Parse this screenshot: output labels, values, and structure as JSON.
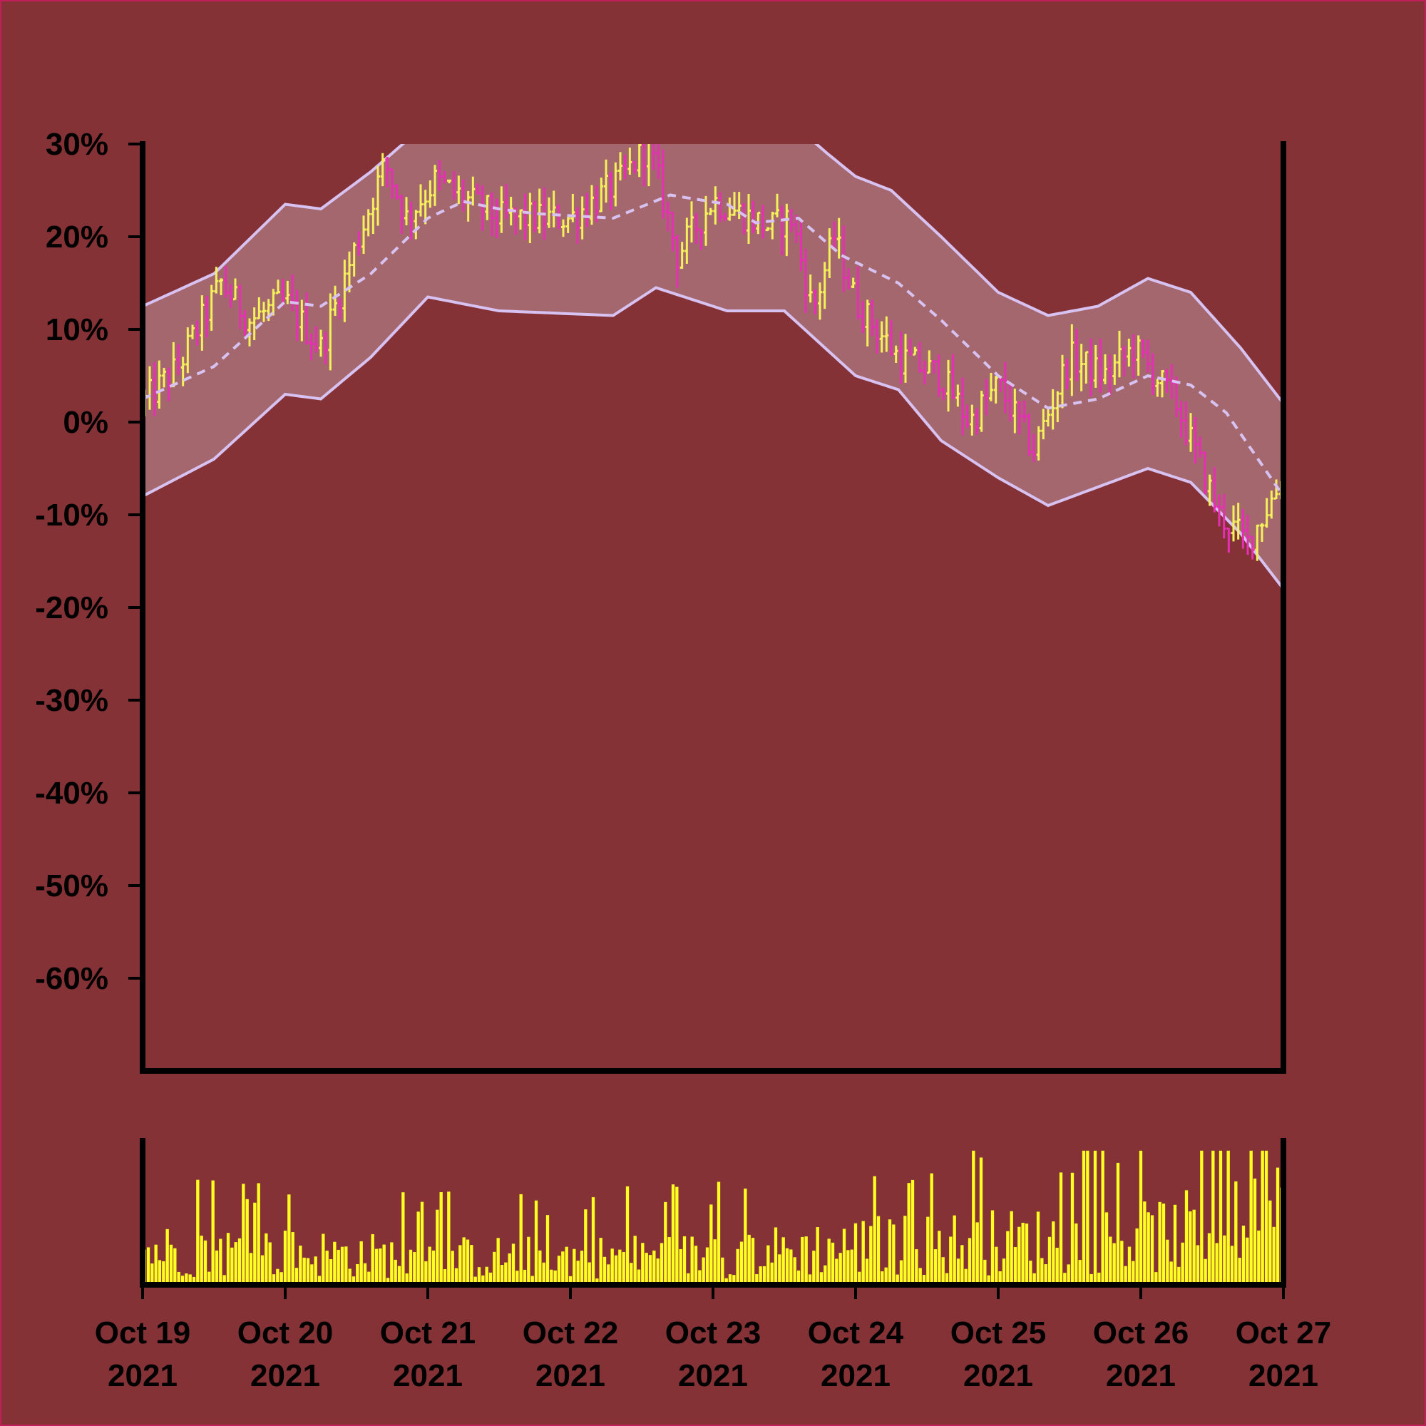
{
  "colors": {
    "background": "#843236",
    "frame": "#c21e5a",
    "band_fill": "#b98a92",
    "band_line": "#d8c2f2",
    "up_bar": "#f4f25c",
    "down_bar": "#e62fb4",
    "volume": "#ffff22",
    "axis": "#000000"
  },
  "chart_data": [
    {
      "type": "ohlc",
      "title": "",
      "xlabel": "",
      "ylabel": "",
      "ylim": [
        -70,
        30
      ],
      "y_ticks": [
        "30%",
        "20%",
        "10%",
        "0%",
        "-10%",
        "-20%",
        "-30%",
        "-40%",
        "-50%",
        "-60%"
      ],
      "y_tick_values": [
        30,
        20,
        10,
        0,
        -10,
        -20,
        -30,
        -40,
        -50,
        -60
      ],
      "x_range": [
        "Oct 19 2021",
        "Oct 27 2021"
      ],
      "grid": false,
      "overlay": "bollinger bands (moving average with upper/lower band)",
      "price_path": [
        {
          "day": 0.0,
          "v": 2
        },
        {
          "day": 0.25,
          "v": 6
        },
        {
          "day": 0.55,
          "v": 15
        },
        {
          "day": 0.75,
          "v": 11
        },
        {
          "day": 1.0,
          "v": 13
        },
        {
          "day": 1.25,
          "v": 8
        },
        {
          "day": 1.45,
          "v": 17
        },
        {
          "day": 1.7,
          "v": 28
        },
        {
          "day": 1.85,
          "v": 22
        },
        {
          "day": 2.05,
          "v": 26
        },
        {
          "day": 2.5,
          "v": 22
        },
        {
          "day": 3.0,
          "v": 22
        },
        {
          "day": 3.35,
          "v": 26
        },
        {
          "day": 3.55,
          "v": 30
        },
        {
          "day": 3.75,
          "v": 18
        },
        {
          "day": 4.0,
          "v": 24
        },
        {
          "day": 4.4,
          "v": 21
        },
        {
          "day": 4.55,
          "v": 22
        },
        {
          "day": 4.7,
          "v": 12
        },
        {
          "day": 4.85,
          "v": 20
        },
        {
          "day": 5.0,
          "v": 13
        },
        {
          "day": 5.3,
          "v": 7
        },
        {
          "day": 5.6,
          "v": 5
        },
        {
          "day": 5.8,
          "v": 0
        },
        {
          "day": 6.0,
          "v": 4
        },
        {
          "day": 6.25,
          "v": -3
        },
        {
          "day": 6.5,
          "v": 7
        },
        {
          "day": 6.75,
          "v": 5
        },
        {
          "day": 6.95,
          "v": 8
        },
        {
          "day": 7.25,
          "v": 2
        },
        {
          "day": 7.55,
          "v": -10
        },
        {
          "day": 7.75,
          "v": -13
        },
        {
          "day": 8.0,
          "v": -6
        }
      ],
      "moving_average": [
        {
          "day": 0.0,
          "v": 2.5
        },
        {
          "day": 0.5,
          "v": 6
        },
        {
          "day": 1.0,
          "v": 13
        },
        {
          "day": 1.25,
          "v": 12.5
        },
        {
          "day": 1.6,
          "v": 16
        },
        {
          "day": 2.0,
          "v": 22
        },
        {
          "day": 2.25,
          "v": 23.8
        },
        {
          "day": 2.5,
          "v": 23
        },
        {
          "day": 2.75,
          "v": 22.5
        },
        {
          "day": 3.3,
          "v": 22
        },
        {
          "day": 3.7,
          "v": 24.5
        },
        {
          "day": 4.1,
          "v": 23.5
        },
        {
          "day": 4.3,
          "v": 21.5
        },
        {
          "day": 4.6,
          "v": 22
        },
        {
          "day": 4.9,
          "v": 18
        },
        {
          "day": 5.3,
          "v": 15
        },
        {
          "day": 5.6,
          "v": 11
        },
        {
          "day": 6.0,
          "v": 5
        },
        {
          "day": 6.35,
          "v": 1.5
        },
        {
          "day": 6.7,
          "v": 2.5
        },
        {
          "day": 7.05,
          "v": 5
        },
        {
          "day": 7.35,
          "v": 4
        },
        {
          "day": 7.6,
          "v": 1
        },
        {
          "day": 8.0,
          "v": -8
        }
      ],
      "upper_band": [
        {
          "day": 0.0,
          "v": 12.5
        },
        {
          "day": 0.5,
          "v": 16
        },
        {
          "day": 1.0,
          "v": 23.5
        },
        {
          "day": 1.25,
          "v": 23
        },
        {
          "day": 1.6,
          "v": 27
        },
        {
          "day": 1.9,
          "v": 31
        },
        {
          "day": 3.0,
          "v": 31
        },
        {
          "day": 4.65,
          "v": 31
        },
        {
          "day": 4.8,
          "v": 29
        },
        {
          "day": 5.0,
          "v": 26.5
        },
        {
          "day": 5.25,
          "v": 25
        },
        {
          "day": 5.6,
          "v": 20
        },
        {
          "day": 6.0,
          "v": 14
        },
        {
          "day": 6.35,
          "v": 11.5
        },
        {
          "day": 6.7,
          "v": 12.5
        },
        {
          "day": 7.05,
          "v": 15.5
        },
        {
          "day": 7.35,
          "v": 14
        },
        {
          "day": 7.7,
          "v": 8
        },
        {
          "day": 8.0,
          "v": 2
        }
      ],
      "lower_band": [
        {
          "day": 0.0,
          "v": -8
        },
        {
          "day": 0.5,
          "v": -4
        },
        {
          "day": 1.0,
          "v": 3
        },
        {
          "day": 1.25,
          "v": 2.5
        },
        {
          "day": 1.6,
          "v": 7
        },
        {
          "day": 2.0,
          "v": 13.5
        },
        {
          "day": 2.5,
          "v": 12
        },
        {
          "day": 3.3,
          "v": 11.5
        },
        {
          "day": 3.6,
          "v": 14.5
        },
        {
          "day": 4.1,
          "v": 12
        },
        {
          "day": 4.5,
          "v": 12
        },
        {
          "day": 5.0,
          "v": 5
        },
        {
          "day": 5.3,
          "v": 3.5
        },
        {
          "day": 5.6,
          "v": -2
        },
        {
          "day": 6.0,
          "v": -6
        },
        {
          "day": 6.35,
          "v": -9
        },
        {
          "day": 6.7,
          "v": -7
        },
        {
          "day": 7.05,
          "v": -5
        },
        {
          "day": 7.35,
          "v": -6.5
        },
        {
          "day": 7.7,
          "v": -12
        },
        {
          "day": 8.0,
          "v": -18
        }
      ],
      "bar_count": 240
    },
    {
      "type": "bar",
      "title": "",
      "xlabel": "",
      "ylabel": "",
      "series_name": "volume",
      "categories": [
        "Oct 19\n2021",
        "Oct 20\n2021",
        "Oct 21\n2021",
        "Oct 22\n2021",
        "Oct 23\n2021",
        "Oct 24\n2021",
        "Oct 25\n2021",
        "Oct 26\n2021",
        "Oct 27\n2021"
      ],
      "volume_profile": [
        {
          "day": 0.0,
          "v": 0.45
        },
        {
          "day": 1.0,
          "v": 0.42
        },
        {
          "day": 2.0,
          "v": 0.35
        },
        {
          "day": 3.0,
          "v": 0.36
        },
        {
          "day": 4.0,
          "v": 0.38
        },
        {
          "day": 5.0,
          "v": 0.5
        },
        {
          "day": 6.0,
          "v": 0.55
        },
        {
          "day": 7.0,
          "v": 0.6
        },
        {
          "day": 8.0,
          "v": 0.85
        }
      ],
      "ylim": [
        0,
        1
      ]
    }
  ],
  "x_ticks": [
    {
      "line1": "Oct 19",
      "line2": "2021"
    },
    {
      "line1": "Oct 20",
      "line2": "2021"
    },
    {
      "line1": "Oct 21",
      "line2": "2021"
    },
    {
      "line1": "Oct 22",
      "line2": "2021"
    },
    {
      "line1": "Oct 23",
      "line2": "2021"
    },
    {
      "line1": "Oct 24",
      "line2": "2021"
    },
    {
      "line1": "Oct 25",
      "line2": "2021"
    },
    {
      "line1": "Oct 26",
      "line2": "2021"
    },
    {
      "line1": "Oct 27",
      "line2": "2021"
    }
  ]
}
